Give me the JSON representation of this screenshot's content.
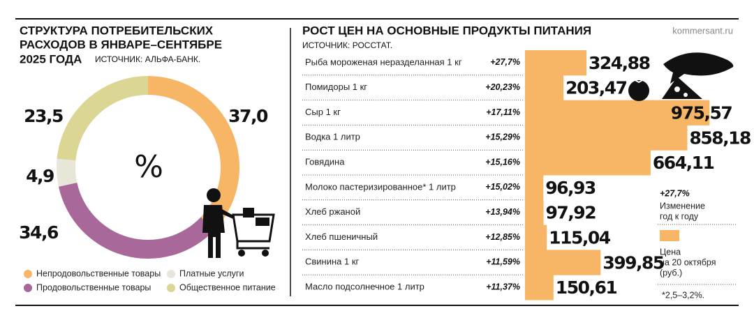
{
  "chart_data": [
    {
      "type": "pie",
      "title": [
        "СТРУКТУРА ПОТРЕБИТЕЛЬСКИХ",
        "РАСХОДОВ В ЯНВАРЕ–СЕНТЯБРЕ",
        "2025 ГОДА"
      ],
      "subtitle": "ИСТОЧНИК: АЛЬФА-БАНК.",
      "center_label": "%",
      "categories": [
        "Непродовольственные товары",
        "Продовольственные товары",
        "Платные услуги",
        "Общественное питание"
      ],
      "values": [
        37.0,
        34.6,
        4.9,
        23.5
      ],
      "value_labels": [
        "37,0",
        "34,6",
        "4,9",
        "23,5"
      ],
      "colors": [
        "#f7b566",
        "#a8689a",
        "#e8e6d8",
        "#dcd695"
      ]
    },
    {
      "type": "bar",
      "orientation": "horizontal",
      "title": "РОСТ ЦЕН НА ОСНОВНЫЕ ПРОДУКТЫ ПИТАНИЯ",
      "subtitle": "ИСТОЧНИК: РОССТАТ.",
      "source": "kommersant.ru",
      "categories": [
        "Рыба мороженая неразделанная 1 кг",
        "Помидоры 1 кг",
        "Сыр 1 кг",
        "Водка 1 литр",
        "Говядина",
        "Молоко пастеризированное* 1 литр",
        "Хлеб ржаной",
        "Хлеб пшеничный",
        "Свинина 1 кг",
        "Масло подсолнечное 1 литр"
      ],
      "changes": [
        "+27,7%",
        "+20,23%",
        "+17,11%",
        "+15,29%",
        "+15,16%",
        "+15,02%",
        "+13,94%",
        "+12,85%",
        "+11,59%",
        "+11,37%"
      ],
      "values": [
        324.88,
        203.47,
        975.57,
        858.18,
        664.11,
        96.93,
        97.92,
        115.04,
        399.85,
        150.61
      ],
      "value_labels": [
        "324,88",
        "203,47",
        "975,57",
        "858,18",
        "664,11",
        "96,93",
        "97,92",
        "115,04",
        "399,85",
        "150,61"
      ],
      "color": "#f7b566",
      "xlim": [
        0,
        1100
      ],
      "legend": {
        "change_example": "+27,7%",
        "change_text": [
          "Изменение",
          "год к году"
        ],
        "price_text": [
          "Цена",
          "на 20 октября",
          "(руб.)"
        ]
      },
      "footnote": "*2,5–3,2%."
    }
  ]
}
